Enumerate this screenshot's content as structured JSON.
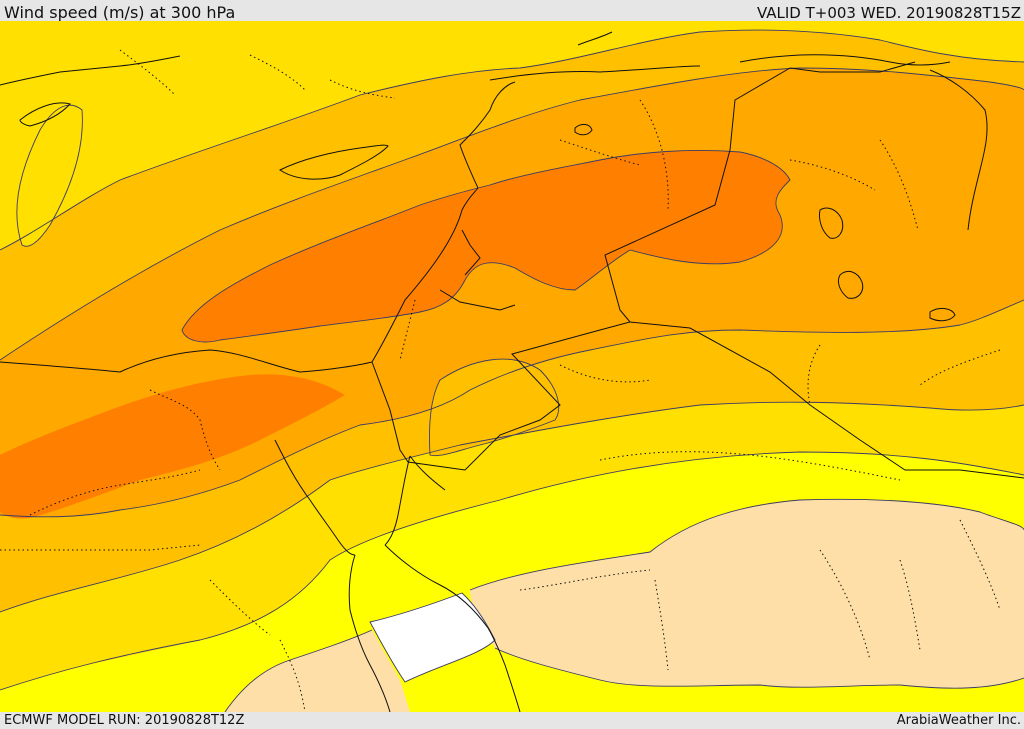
{
  "header": {
    "title": "Wind speed (m/s) at 300 hPa",
    "valid_time": "VALID T+003 WED. 20190828T15Z"
  },
  "footer": {
    "model_run": "ECMWF MODEL RUN: 20190828T12Z",
    "credit": "ArabiaWeather Inc."
  },
  "palette": {
    "white": "#ffffff",
    "tan": "#fedfa8",
    "yellow": "#ffff00",
    "gold": "#ffe000",
    "amber": "#ffc000",
    "orange_light": "#ffa800",
    "orange_deep": "#ff8000",
    "contour_line": "#3c3c64",
    "border_line": "#111111",
    "background": "#e6e6e6"
  }
}
